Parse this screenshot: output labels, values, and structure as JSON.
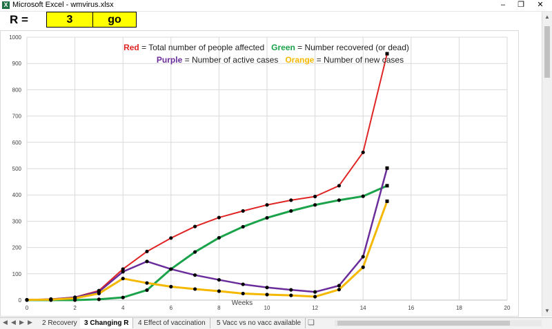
{
  "window": {
    "title": "Microsoft Excel - wmvirus.xlsx",
    "app_icon": "X",
    "minimize": "–",
    "restore": "❐",
    "close": "✕"
  },
  "sheet": {
    "r_label": "R =",
    "r_value": "3",
    "go_label": "go"
  },
  "legend": {
    "red_word": "Red",
    "red_text": " = Total number of people affected",
    "green_word": "Green",
    "green_text": " = Number recovered (or dead)",
    "purple_word": "Purple",
    "purple_text": " = Number of active cases",
    "orange_word": "Orange",
    "orange_text": " = Number of new cases"
  },
  "chart_data": {
    "type": "line",
    "xlabel": "Weeks",
    "ylabel": "",
    "xlim": [
      0,
      20
    ],
    "ylim": [
      0,
      1000
    ],
    "x_ticks": [
      0,
      2,
      4,
      6,
      8,
      10,
      12,
      14,
      16,
      18,
      20
    ],
    "y_ticks": [
      0,
      100,
      200,
      300,
      400,
      500,
      600,
      700,
      800,
      900,
      1000
    ],
    "grid": true,
    "x": [
      0,
      1,
      2,
      3,
      4,
      5,
      6,
      7,
      8,
      9,
      10,
      11,
      12,
      13,
      14,
      15
    ],
    "series": [
      {
        "color": "#e02424",
        "values": [
          1,
          4,
          11,
          36,
          118,
          185,
          236,
          280,
          314,
          339,
          362,
          380,
          394,
          435,
          562,
          937
        ]
      },
      {
        "color": "#1aa34a",
        "values": [
          0,
          0,
          0,
          3,
          10,
          38,
          118,
          183,
          237,
          279,
          313,
          339,
          362,
          380,
          395,
          435
        ]
      },
      {
        "color": "#6a2c9a",
        "values": [
          1,
          3,
          10,
          32,
          108,
          147,
          118,
          95,
          77,
          60,
          48,
          39,
          31,
          55,
          165,
          502
        ]
      },
      {
        "color": "#f5b800",
        "values": [
          1,
          2,
          7,
          25,
          82,
          65,
          51,
          42,
          34,
          25,
          21,
          18,
          13,
          40,
          125,
          376
        ]
      }
    ]
  },
  "tabs": {
    "nav": [
      "◀",
      "◀",
      "▶",
      "▶"
    ],
    "items": [
      {
        "label": "2 Recovery",
        "active": false
      },
      {
        "label": "3 Changing R",
        "active": true
      },
      {
        "label": "4 Effect of vaccination",
        "active": false
      },
      {
        "label": "5 Vacc vs no vacc available",
        "active": false
      }
    ]
  }
}
